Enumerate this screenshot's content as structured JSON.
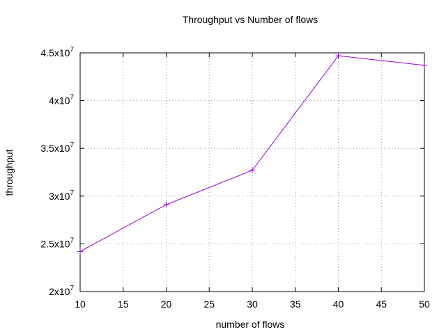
{
  "chart_data": {
    "type": "line",
    "title": "Throughput vs Number of flows",
    "xlabel": "number of flows",
    "ylabel": "throughput",
    "x": [
      10,
      20,
      30,
      40,
      50
    ],
    "series": [
      {
        "values": [
          24200000,
          29100000,
          32700000,
          44700000,
          43700000
        ],
        "color": "#9400d3",
        "marker": "plus"
      }
    ],
    "xlim": [
      10,
      50
    ],
    "ylim": [
      20000000,
      45000000
    ],
    "xticks": [
      10,
      15,
      20,
      25,
      30,
      35,
      40,
      45,
      50
    ],
    "xtick_labels": [
      "10",
      "15",
      "20",
      "25",
      "30",
      "35",
      "40",
      "45",
      "50"
    ],
    "yticks": [
      20000000,
      25000000,
      30000000,
      35000000,
      40000000,
      45000000
    ],
    "ytick_mantissas": [
      "2x10",
      "2.5x10",
      "3x10",
      "3.5x10",
      "4x10",
      "4.5x10"
    ],
    "ytick_exponent": "7",
    "grid": true,
    "grid_style": "dotted"
  }
}
